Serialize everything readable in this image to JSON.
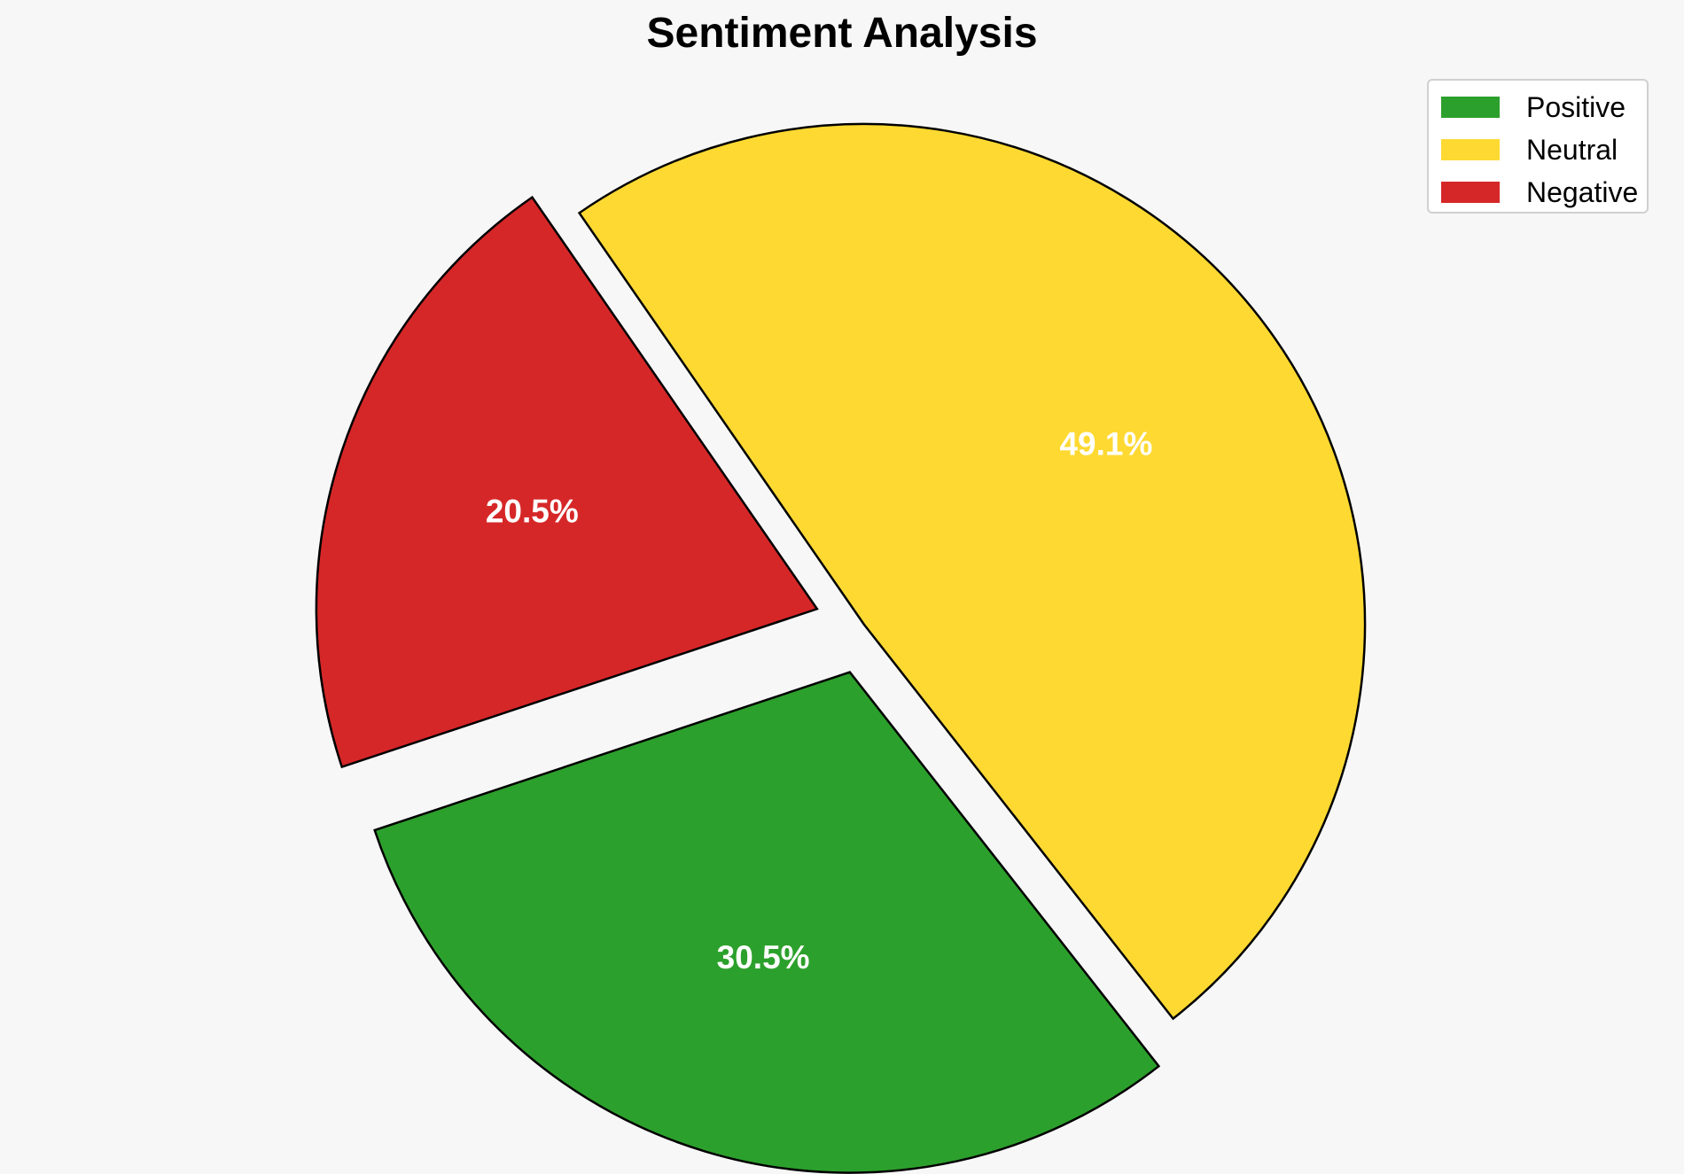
{
  "chart_data": {
    "type": "pie",
    "title": "Sentiment Analysis",
    "categories": [
      "Positive",
      "Neutral",
      "Negative"
    ],
    "values": [
      30.5,
      49.1,
      20.5
    ],
    "labels": [
      "30.5%",
      "49.1%",
      "20.5%"
    ],
    "colors": [
      "#2ca02c",
      "#fed932",
      "#d62728"
    ],
    "exploded": [
      true,
      false,
      true
    ],
    "legend_position": "top-right"
  }
}
